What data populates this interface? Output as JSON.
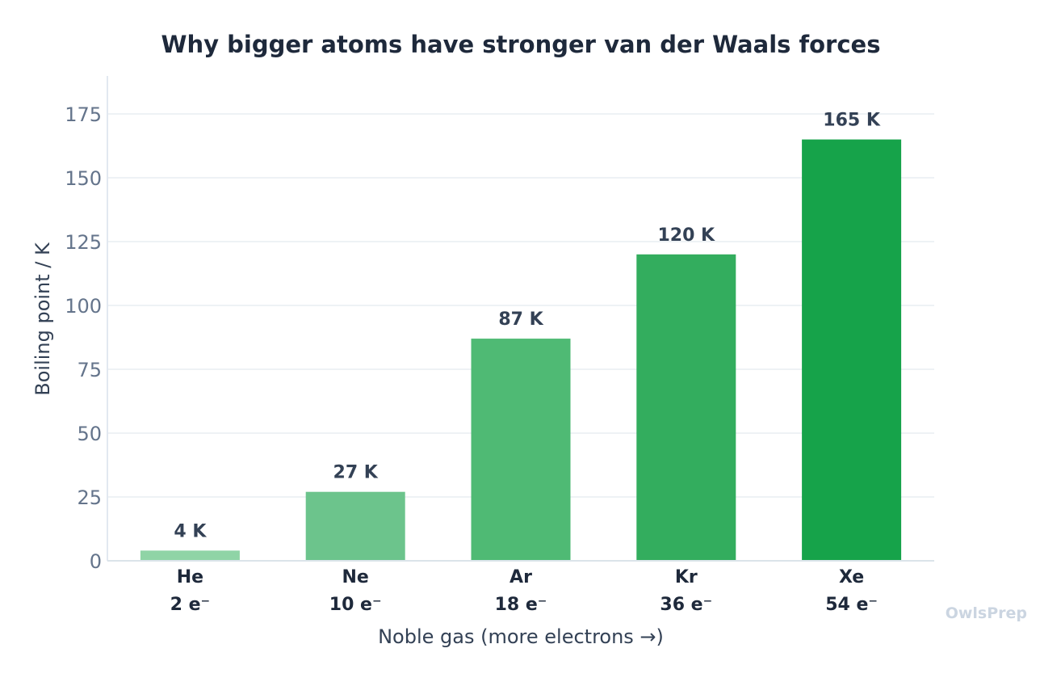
{
  "chart_data": {
    "type": "bar",
    "title": "Why bigger atoms have stronger van der Waals forces",
    "xlabel": "Noble gas  (more electrons →)",
    "ylabel": "Boiling point  /  K",
    "ylim": [
      0,
      190
    ],
    "yticks": [
      0,
      25,
      50,
      75,
      100,
      125,
      150,
      175
    ],
    "grid": "horizontal",
    "categories": [
      "He",
      "Ne",
      "Ar",
      "Kr",
      "Xe"
    ],
    "sublabels": [
      "2 e⁻",
      "10 e⁻",
      "18 e⁻",
      "36 e⁻",
      "54 e⁻"
    ],
    "values": [
      4,
      27,
      87,
      120,
      165
    ],
    "value_labels": [
      "4 K",
      "27 K",
      "87 K",
      "120 K",
      "165 K"
    ],
    "colors": [
      "#8fd4a6",
      "#6cc48c",
      "#4fba74",
      "#33ad5e",
      "#16a34a"
    ]
  },
  "watermark": "OwlsPrep"
}
